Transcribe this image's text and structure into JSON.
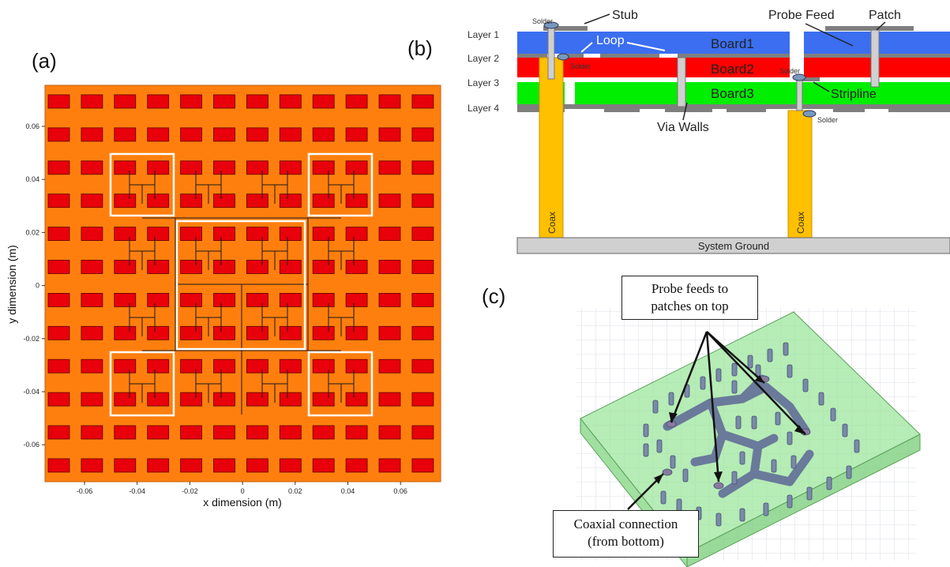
{
  "panel_a": {
    "label": "(a)",
    "xlabel": "x dimension (m)",
    "ylabel": "y dimension (m)",
    "x_ticks": [
      "-0.06",
      "-0.04",
      "-0.02",
      "0",
      "0.02",
      "0.04",
      "0.06"
    ],
    "y_ticks": [
      "0.06",
      "0.04",
      "0.02",
      "0",
      "-0.02",
      "-0.04",
      "-0.06"
    ],
    "grid_rows": 12,
    "grid_cols": 12,
    "colors": {
      "substrate": "#ff7f0e",
      "patch": "#e8000b",
      "outline": "#ffffff"
    }
  },
  "panel_b": {
    "label": "(b)",
    "layers": [
      "Layer 1",
      "Layer 2",
      "Layer 3",
      "Layer 4"
    ],
    "boards": [
      "Board1",
      "Board2",
      "Board3"
    ],
    "annotations": {
      "stub": "Stub",
      "probe_feed": "Probe Feed",
      "patch": "Patch",
      "loop": "Loop",
      "stripline": "Stripline",
      "via_walls": "Via Walls",
      "solder": "Solder"
    },
    "coax": "Coax",
    "ground": "System Ground",
    "colors": {
      "board1": "#3b6ef0",
      "board2": "#ff0000",
      "board3": "#00ee00",
      "coax": "#ffc000",
      "ground": "#d0d0d0"
    }
  },
  "panel_c": {
    "label": "(c)",
    "callout_top": [
      "Probe feeds to",
      "patches on top"
    ],
    "callout_bottom": [
      "Coaxial connection",
      "(from bottom)"
    ]
  }
}
